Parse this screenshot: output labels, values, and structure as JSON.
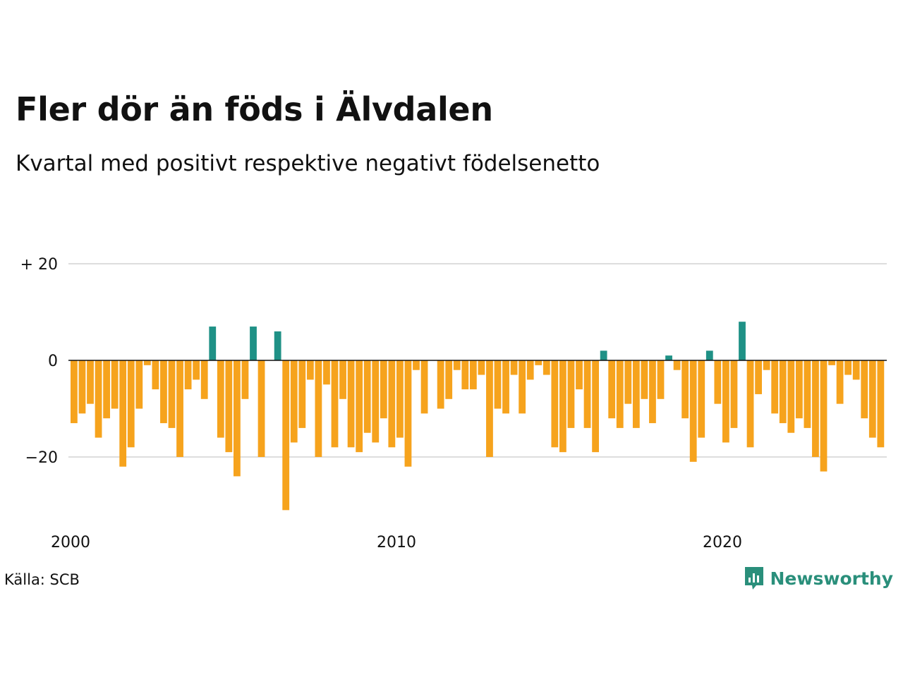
{
  "title": "Fler dör än föds i Älvdalen",
  "subtitle": "Kvartal med positivt respektive negativt födelsenetto",
  "source": "Källa: SCB",
  "brand": {
    "name": "Newsworthy",
    "icon": "newsworthy-logo-icon"
  },
  "colors": {
    "positive": "#1f9186",
    "negative": "#f6a31d",
    "grid": "#dddddd",
    "zero_line": "#111111"
  },
  "chart_data": {
    "type": "bar",
    "x_start": "2000Q1",
    "x_end": "2024Q4",
    "x_ticks": [
      {
        "label": "2000",
        "index": 0
      },
      {
        "label": "2010",
        "index": 40
      },
      {
        "label": "2020",
        "index": 80
      }
    ],
    "y_ticks": [
      {
        "label": "+ 20",
        "value": 20
      },
      {
        "label": "0",
        "value": 0
      },
      {
        "label": "−20",
        "value": -20
      }
    ],
    "ylim": [
      -31,
      20
    ],
    "grid": true,
    "values": [
      -13,
      -11,
      -9,
      -16,
      -12,
      -10,
      -22,
      -18,
      -10,
      -1,
      -6,
      -13,
      -14,
      -20,
      -6,
      -4,
      -8,
      7,
      -16,
      -19,
      -24,
      -8,
      7,
      -20,
      0,
      6,
      -31,
      -17,
      -14,
      -4,
      -20,
      -5,
      -18,
      -8,
      -18,
      -19,
      -15,
      -17,
      -12,
      -18,
      -16,
      -22,
      -2,
      -11,
      0,
      -10,
      -8,
      -2,
      -6,
      -6,
      -3,
      -20,
      -10,
      -11,
      -3,
      -11,
      -4,
      -1,
      -3,
      -18,
      -19,
      -14,
      -6,
      -14,
      -19,
      2,
      -12,
      -14,
      -9,
      -14,
      -8,
      -13,
      -8,
      1,
      -2,
      -12,
      -21,
      -16,
      2,
      -9,
      -17,
      -14,
      8,
      -18,
      -7,
      -2,
      -11,
      -13,
      -15,
      -12,
      -14,
      -20,
      -23,
      -1,
      -9,
      -3,
      -4,
      -12,
      -16,
      -18
    ]
  }
}
